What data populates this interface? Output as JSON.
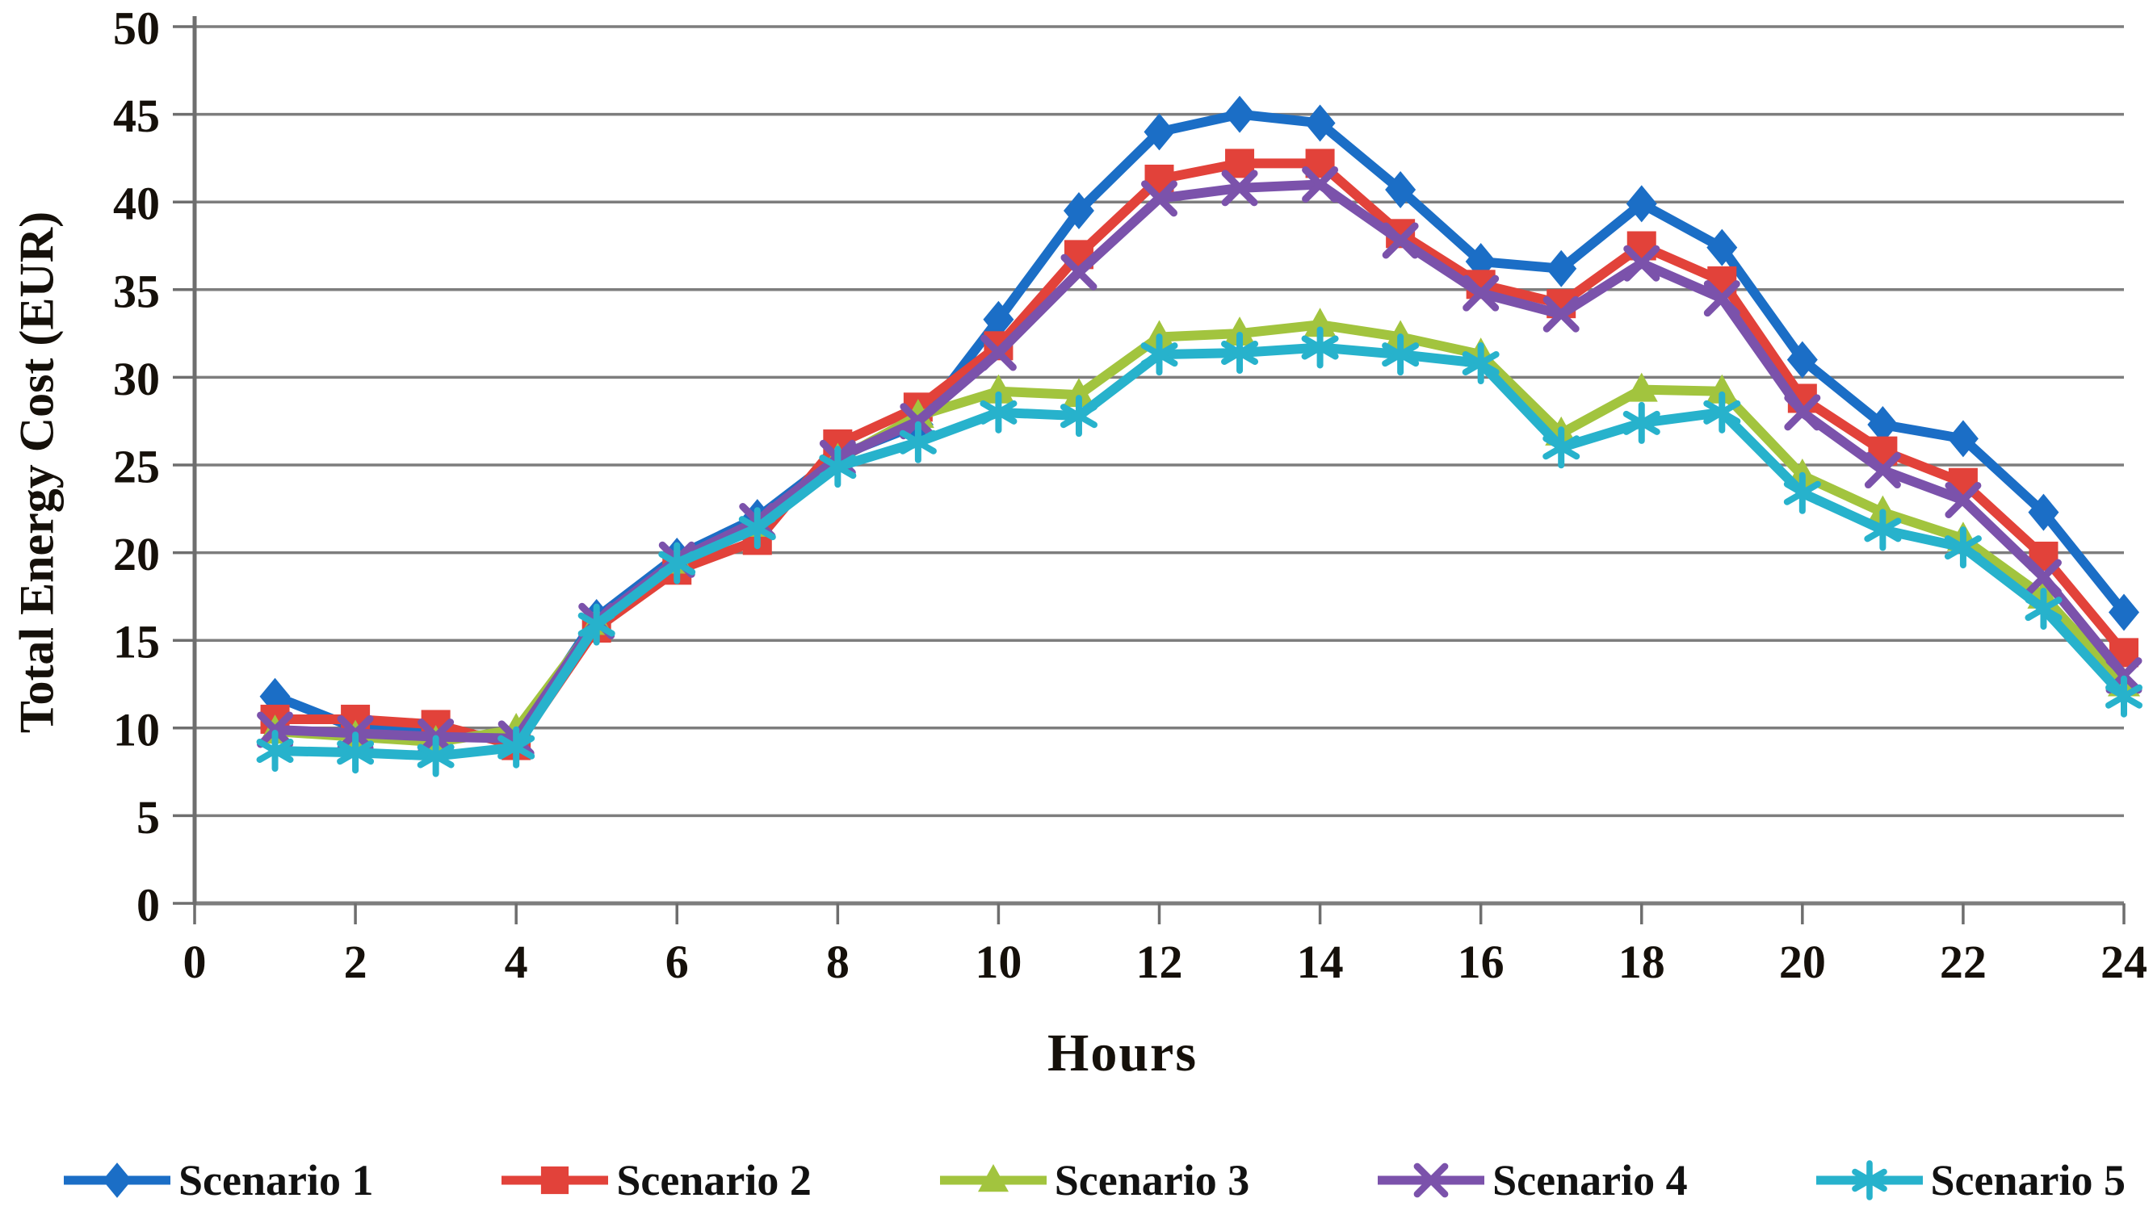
{
  "chart_data": {
    "type": "line",
    "title": "",
    "xlabel": "Hours",
    "ylabel": "Total Energy Cost (EUR)",
    "xlim": [
      0,
      24
    ],
    "ylim": [
      0,
      50
    ],
    "x_tick_step": 2,
    "y_tick_step": 5,
    "grid": "horizontal gridlines every 5",
    "legend_position": "bottom",
    "grid_color": "#7d7d7d",
    "axis_color": "#6e6e6e",
    "tick_label_color": "#15100a",
    "x": [
      1,
      2,
      3,
      4,
      5,
      6,
      7,
      8,
      9,
      10,
      11,
      12,
      13,
      14,
      15,
      16,
      17,
      18,
      19,
      20,
      21,
      22,
      23,
      24
    ],
    "series": [
      {
        "name": "Scenario 1",
        "color": "#1b6ec6",
        "marker": "diamond",
        "values": [
          11.8,
          10.0,
          9.8,
          9.4,
          16.3,
          19.8,
          22.0,
          25.5,
          27.3,
          33.3,
          39.5,
          44.0,
          45.0,
          44.5,
          40.7,
          36.6,
          36.2,
          39.9,
          37.4,
          31.0,
          27.3,
          26.5,
          22.3,
          16.6
        ]
      },
      {
        "name": "Scenario 2",
        "color": "#e2423a",
        "marker": "square",
        "values": [
          10.5,
          10.5,
          10.2,
          9.0,
          15.7,
          19.0,
          20.7,
          26.2,
          28.3,
          31.8,
          37.0,
          41.3,
          42.2,
          42.2,
          38.2,
          35.3,
          34.2,
          37.5,
          35.5,
          28.8,
          25.8,
          24.0,
          19.8,
          14.3
        ]
      },
      {
        "name": "Scenario 3",
        "color": "#a2c43e",
        "marker": "triangle",
        "values": [
          9.8,
          9.5,
          9.2,
          9.9,
          16.0,
          19.5,
          21.6,
          25.3,
          27.8,
          29.2,
          29.0,
          32.3,
          32.5,
          33.0,
          32.3,
          31.3,
          26.8,
          29.3,
          29.2,
          24.4,
          22.3,
          20.8,
          17.5,
          12.5
        ]
      },
      {
        "name": "Scenario 4",
        "color": "#7b52ab",
        "marker": "x",
        "values": [
          9.9,
          9.7,
          9.5,
          9.4,
          16.1,
          19.6,
          21.8,
          25.4,
          27.5,
          31.4,
          36.0,
          40.2,
          40.8,
          41.0,
          37.8,
          34.8,
          33.6,
          36.5,
          34.5,
          28.0,
          24.7,
          23.0,
          18.6,
          13.0
        ]
      },
      {
        "name": "Scenario 5",
        "color": "#27b2cc",
        "marker": "asterisk",
        "values": [
          8.7,
          8.6,
          8.4,
          8.9,
          15.9,
          19.4,
          21.4,
          24.9,
          26.3,
          28.0,
          27.8,
          31.3,
          31.4,
          31.7,
          31.3,
          30.8,
          26.0,
          27.4,
          28.0,
          23.4,
          21.3,
          20.3,
          16.8,
          11.8
        ]
      }
    ]
  }
}
